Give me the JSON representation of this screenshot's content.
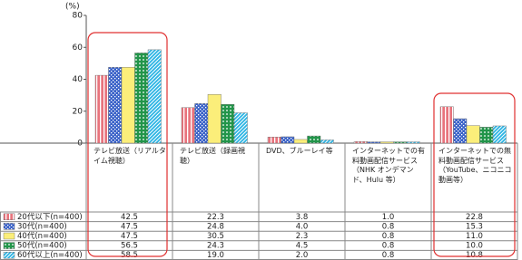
{
  "chart_data": {
    "type": "bar",
    "y_unit": "(%)",
    "categories": [
      "テレビ放送（リアルタイム視聴）",
      "テレビ放送（録画視聴）",
      "DVD、ブルーレイ等",
      "インターネットでの有料動画配信サービス（NHK オンデマンド、Hulu 等）",
      "インターネットでの無料動画配信サービス（YouTube、ニコニコ動画等）"
    ],
    "series": [
      {
        "name": "20代以下(n=400)",
        "color": "#e8737c",
        "values": [
          42.5,
          22.3,
          3.8,
          1.0,
          22.8
        ],
        "value_labels": [
          "42.5",
          "22.3",
          "3.8",
          "1.0",
          "22.8"
        ]
      },
      {
        "name": "30代(n=400)",
        "color": "#3a62c8",
        "values": [
          47.5,
          24.8,
          4.0,
          0.8,
          15.3
        ],
        "value_labels": [
          "47.5",
          "24.8",
          "4.0",
          "0.8",
          "15.3"
        ]
      },
      {
        "name": "40代(n=400)",
        "color": "#fbee7a",
        "values": [
          47.5,
          30.5,
          2.3,
          0.8,
          11.0
        ],
        "value_labels": [
          "47.5",
          "30.5",
          "2.3",
          "0.8",
          "11.0"
        ]
      },
      {
        "name": "50代(n=400)",
        "color": "#22954a",
        "values": [
          56.5,
          24.3,
          4.5,
          0.8,
          10.0
        ],
        "value_labels": [
          "56.5",
          "24.3",
          "4.5",
          "0.8",
          "10.0"
        ]
      },
      {
        "name": "60代以上(n=400)",
        "color": "#2bb4e4",
        "values": [
          58.5,
          19.0,
          2.0,
          0.8,
          10.8
        ],
        "value_labels": [
          "58.5",
          "19.0",
          "2.0",
          "0.8",
          "10.8"
        ]
      }
    ],
    "ylim": [
      0,
      80
    ],
    "yticks": [
      0,
      20,
      40,
      60,
      80
    ],
    "grid": false
  }
}
